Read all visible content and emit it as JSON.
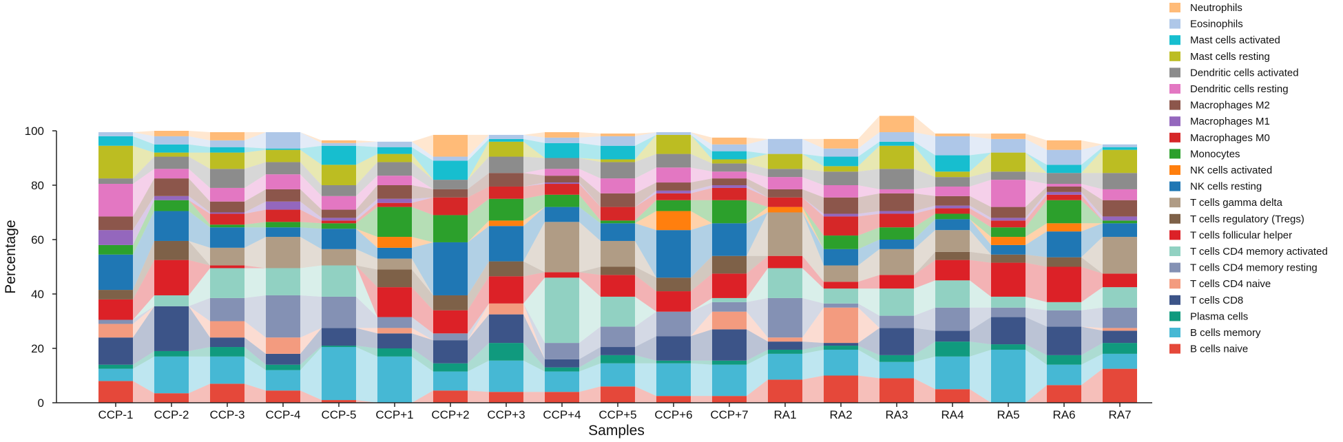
{
  "chart_data": {
    "type": "bar",
    "stacked": true,
    "connector_bands": true,
    "xlabel": "Samples",
    "ylabel": "Percentage",
    "ylim": [
      0,
      100
    ],
    "yticks": [
      0,
      20,
      40,
      60,
      80,
      100
    ],
    "legend_position": "right",
    "categories": [
      "CCP-1",
      "CCP-2",
      "CCP-3",
      "CCP-4",
      "CCP-5",
      "CCP+1",
      "CCP+2",
      "CCP+3",
      "CCP+4",
      "CCP+5",
      "CCP+6",
      "CCP+7",
      "RA1",
      "RA2",
      "RA3",
      "RA4",
      "RA5",
      "RA6",
      "RA7"
    ],
    "series": [
      {
        "name": "B cells naive",
        "color": "#e5483a",
        "values": [
          8,
          3.5,
          7,
          4.5,
          1,
          0,
          4.5,
          4,
          4,
          6,
          2.5,
          2.5,
          8.5,
          10,
          9,
          5,
          0,
          6.5,
          12.5
        ]
      },
      {
        "name": "B cells memory",
        "color": "#46b8d4",
        "values": [
          4.5,
          13.5,
          10,
          7.5,
          19.5,
          17,
          7,
          11.5,
          7.5,
          8.5,
          12,
          11.5,
          9.5,
          9.5,
          6,
          12,
          19.5,
          7.5,
          5.5
        ]
      },
      {
        "name": "Plasma cells",
        "color": "#109a7e",
        "values": [
          1.5,
          2,
          3.5,
          2,
          0.5,
          3,
          3,
          6.5,
          1.5,
          3,
          1,
          1.5,
          1.5,
          1.5,
          2.5,
          5.5,
          2,
          3.5,
          4
        ]
      },
      {
        "name": "T cells CD8",
        "color": "#3c5488",
        "values": [
          10,
          16.5,
          3.5,
          4,
          6.5,
          5.5,
          8.5,
          10.5,
          3,
          3,
          9,
          11.5,
          3,
          1,
          10,
          4,
          10,
          10.5,
          4.5
        ]
      },
      {
        "name": "T cells CD4 naive",
        "color": "#f39b7f",
        "values": [
          5,
          0,
          6,
          6,
          0,
          2,
          0,
          4,
          0,
          0,
          0,
          6.5,
          1.5,
          13,
          0,
          0,
          0,
          0,
          1
        ]
      },
      {
        "name": "T cells CD4 memory resting",
        "color": "#8491b4",
        "values": [
          1.5,
          0,
          8.5,
          15.5,
          11.5,
          4,
          2.5,
          0,
          6,
          7.5,
          9,
          3.5,
          14.5,
          1.5,
          4.5,
          8.5,
          3.5,
          6,
          7.5
        ]
      },
      {
        "name": "T cells CD4 memory activated",
        "color": "#91d1c2",
        "values": [
          0,
          4,
          11,
          10,
          11.5,
          0,
          0,
          0,
          24,
          11,
          0,
          1.5,
          11,
          5.5,
          10,
          10,
          4,
          3,
          7.5
        ]
      },
      {
        "name": "T cells follicular helper",
        "color": "#dc2127",
        "values": [
          7.5,
          13,
          1,
          0,
          0,
          11,
          8.5,
          10,
          2,
          8,
          7.5,
          9,
          4.5,
          2.5,
          5,
          7.5,
          12.5,
          13,
          5
        ]
      },
      {
        "name": "T cells regulatory (Tregs)",
        "color": "#7e6148",
        "values": [
          3.5,
          7,
          0,
          0,
          0,
          6.5,
          5.5,
          5.5,
          0,
          3,
          5,
          6.5,
          0,
          0,
          0,
          3,
          3,
          3.5,
          0
        ]
      },
      {
        "name": "T cells gamma delta",
        "color": "#b09c85",
        "values": [
          0,
          0,
          6.5,
          11.5,
          6,
          4,
          0,
          0,
          18.5,
          9.5,
          0,
          0,
          16,
          6,
          9.5,
          8,
          0,
          0,
          13.5
        ]
      },
      {
        "name": "NK cells resting",
        "color": "#1f77b4",
        "values": [
          13,
          11,
          7.5,
          3.5,
          7.5,
          4,
          19.5,
          13,
          5.5,
          6.5,
          17.5,
          12,
          0,
          6,
          3.5,
          4,
          3.5,
          9.5,
          5
        ]
      },
      {
        "name": "NK cells activated",
        "color": "#ff7f0e",
        "values": [
          0,
          0,
          0,
          0,
          0,
          4,
          0,
          2,
          0,
          0,
          7,
          0,
          2,
          0,
          0,
          0,
          3,
          3,
          0
        ]
      },
      {
        "name": "Monocytes",
        "color": "#2ca02c",
        "values": [
          3.5,
          4,
          1,
          2,
          2,
          11,
          10,
          8,
          4.5,
          1,
          4,
          8.5,
          0,
          5,
          4.5,
          2,
          3.5,
          8.5,
          1
        ]
      },
      {
        "name": "Macrophages M0",
        "color": "#d62728",
        "values": [
          0,
          0,
          4,
          4.5,
          1,
          1.5,
          6.5,
          4.5,
          4,
          5,
          2.5,
          4.5,
          3.5,
          7,
          5,
          2,
          2.5,
          2,
          0
        ]
      },
      {
        "name": "Macrophages M1",
        "color": "#9467bd",
        "values": [
          5.5,
          1.5,
          0.5,
          3,
          1,
          1.5,
          0,
          0,
          0.5,
          0,
          1,
          1,
          0,
          1,
          1,
          1,
          1,
          1,
          1.5
        ]
      },
      {
        "name": "Macrophages M2",
        "color": "#8c564b",
        "values": [
          5,
          6.5,
          4,
          4.5,
          3,
          5,
          3,
          5,
          2.5,
          5,
          3,
          2.5,
          3,
          6,
          6.5,
          3.5,
          4,
          2,
          6
        ]
      },
      {
        "name": "Dendritic cells resting",
        "color": "#e377c2",
        "values": [
          12,
          3.5,
          5,
          5.5,
          5,
          3.5,
          0,
          0,
          2.5,
          5.5,
          5.5,
          2.5,
          4.5,
          4.5,
          1.5,
          3.5,
          10,
          1,
          4
        ]
      },
      {
        "name": "Dendritic cells activated",
        "color": "#8c8c8c",
        "values": [
          2,
          4.5,
          7,
          4.5,
          4,
          5,
          3.5,
          6,
          4,
          6,
          5,
          3,
          3,
          5,
          7.5,
          3.5,
          3,
          4,
          6
        ]
      },
      {
        "name": "Mast cells resting",
        "color": "#bcbd22",
        "values": [
          12,
          1.5,
          6,
          4.5,
          7.5,
          3,
          0,
          5.5,
          0,
          1,
          7,
          1.5,
          5.5,
          2,
          8.5,
          2,
          7,
          0,
          8.5
        ]
      },
      {
        "name": "Mast cells activated",
        "color": "#17becf",
        "values": [
          3.5,
          3,
          2,
          0.5,
          7,
          2.5,
          7,
          1,
          5.5,
          5,
          0,
          3,
          0,
          3.5,
          1.5,
          6,
          0,
          3,
          1
        ]
      },
      {
        "name": "Eosinophils",
        "color": "#aec7e8",
        "values": [
          1.5,
          3,
          2.5,
          6,
          1,
          2,
          1.5,
          1.5,
          2,
          3.5,
          1,
          2.5,
          5.5,
          3,
          3.5,
          7,
          5,
          5.5,
          1
        ]
      },
      {
        "name": "Neutrophils",
        "color": "#ffbb78",
        "values": [
          0,
          2,
          3,
          0,
          1,
          0,
          8,
          0,
          2,
          1,
          0,
          2.5,
          0,
          3.5,
          6,
          1,
          2,
          3.5,
          0
        ]
      }
    ]
  }
}
